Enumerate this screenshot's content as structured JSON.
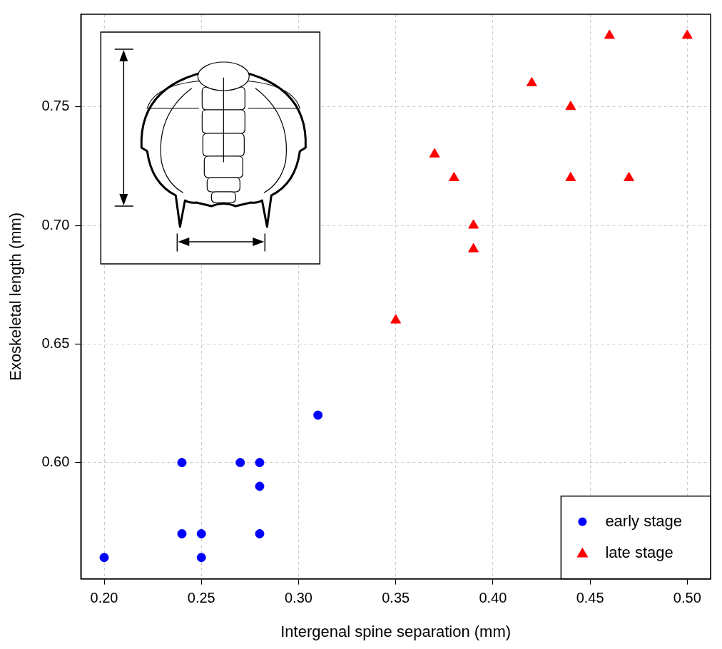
{
  "chart_data": {
    "type": "scatter",
    "x_label": "Intergenal spine separation (mm)",
    "y_label": "Exoskeletal length (mm)",
    "series": [
      {
        "name": "early stage",
        "color": "#0000ff",
        "marker": "circle",
        "x": [
          0.2,
          0.24,
          0.24,
          0.25,
          0.25,
          0.27,
          0.28,
          0.28,
          0.28,
          0.31
        ],
        "values": [
          0.56,
          0.6,
          0.57,
          0.57,
          0.56,
          0.6,
          0.6,
          0.59,
          0.57,
          0.62
        ]
      },
      {
        "name": "late stage",
        "color": "#ff0000",
        "marker": "triangle",
        "x": [
          0.35,
          0.37,
          0.38,
          0.39,
          0.39,
          0.42,
          0.44,
          0.44,
          0.46,
          0.47,
          0.5
        ],
        "values": [
          0.66,
          0.73,
          0.72,
          0.7,
          0.69,
          0.76,
          0.75,
          0.72,
          0.78,
          0.72,
          0.78
        ]
      }
    ],
    "xlim": [
      0.188,
      0.512
    ],
    "ylim": [
      0.551,
      0.789
    ],
    "xticks": [
      {
        "value": 0.2,
        "label": "0.20"
      },
      {
        "value": 0.25,
        "label": "0.25"
      },
      {
        "value": 0.3,
        "label": "0.30"
      },
      {
        "value": 0.35,
        "label": "0.35"
      },
      {
        "value": 0.4,
        "label": "0.40"
      },
      {
        "value": 0.45,
        "label": "0.45"
      },
      {
        "value": 0.5,
        "label": "0.50"
      }
    ],
    "yticks": [
      {
        "value": 0.6,
        "label": "0.60"
      },
      {
        "value": 0.65,
        "label": "0.65"
      },
      {
        "value": 0.7,
        "label": "0.70"
      },
      {
        "value": 0.75,
        "label": "0.75"
      }
    ],
    "grid": true,
    "legend": "bottom right"
  }
}
